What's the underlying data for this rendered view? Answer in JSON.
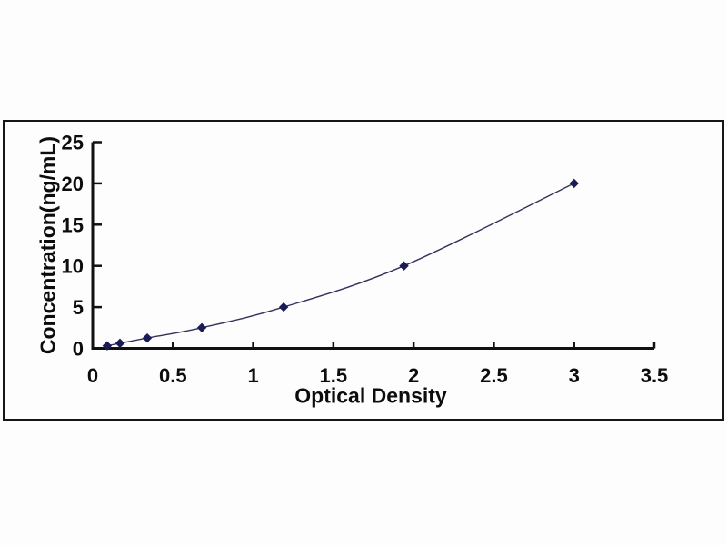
{
  "figure": {
    "background_color": "#fdfdfd",
    "frame_color": "#161616"
  },
  "chart_data": {
    "type": "line",
    "subtype": "standard-curve-scatter-with-smooth-line",
    "title": "",
    "xlabel": "Optical Density",
    "ylabel": "Concentration(ng/mL)",
    "x": [
      0.09,
      0.17,
      0.34,
      0.68,
      1.19,
      1.94,
      3.0
    ],
    "y": [
      0.31,
      0.62,
      1.25,
      2.5,
      5,
      10,
      20
    ],
    "xlim": [
      0,
      3.5
    ],
    "ylim": [
      0,
      25
    ],
    "x_tick_values": [
      0,
      0.5,
      1,
      1.5,
      2,
      2.5,
      3,
      3.5
    ],
    "x_tick_labels": [
      "0",
      "0.5",
      "1",
      "1.5",
      "2",
      "2.5",
      "3",
      "3.5"
    ],
    "y_tick_values": [
      0,
      5,
      10,
      15,
      20,
      25
    ],
    "y_tick_labels": [
      "0",
      "5",
      "10",
      "15",
      "20",
      "25"
    ],
    "grid": false,
    "legend": "none",
    "marker": "diamond",
    "marker_color": "#1b1b55",
    "line_color": "#32325c",
    "axis_color": "#111111",
    "tick_style": "inside"
  }
}
